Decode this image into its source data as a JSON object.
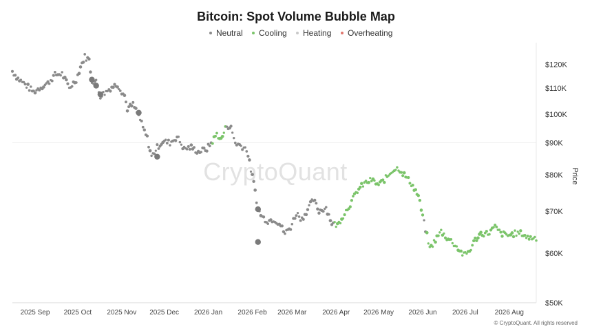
{
  "chart_data": {
    "type": "scatter",
    "title": "Bitcoin: Spot Volume Bubble Map",
    "ylabel": "Price",
    "y_scale": "log",
    "ylim": [
      50000,
      130000
    ],
    "y_ticks": [
      {
        "value": 120000,
        "label": "$120K"
      },
      {
        "value": 110000,
        "label": "$110K"
      },
      {
        "value": 100000,
        "label": "$100K"
      },
      {
        "value": 90000,
        "label": "$90K"
      },
      {
        "value": 80000,
        "label": "$80K"
      },
      {
        "value": 70000,
        "label": "$70K"
      },
      {
        "value": 60000,
        "label": "$60K"
      },
      {
        "value": 50000,
        "label": "$50K"
      }
    ],
    "x_range": [
      "2025-08-16",
      "2026-08-20"
    ],
    "x_ticks": [
      {
        "date": "2025-09-01",
        "label": "2025 Sep"
      },
      {
        "date": "2025-10-01",
        "label": "2025 Oct"
      },
      {
        "date": "2025-11-01",
        "label": "2025 Nov"
      },
      {
        "date": "2025-12-01",
        "label": "2025 Dec"
      },
      {
        "date": "2026-01-01",
        "label": "2026 Jan"
      },
      {
        "date": "2026-02-01",
        "label": "2026 Feb"
      },
      {
        "date": "2026-03-01",
        "label": "2026 Mar"
      },
      {
        "date": "2026-04-01",
        "label": "2026 Apr"
      },
      {
        "date": "2026-05-01",
        "label": "2026 May"
      },
      {
        "date": "2026-06-01",
        "label": "2026 Jun"
      },
      {
        "date": "2026-07-01",
        "label": "2026 Jul"
      },
      {
        "date": "2026-08-01",
        "label": "2026 Aug"
      }
    ],
    "grid": true,
    "legend_position": "top",
    "legend": [
      {
        "name": "Neutral",
        "color": "#8a8a8a"
      },
      {
        "name": "Cooling",
        "color": "#7bc46a"
      },
      {
        "name": "Heating",
        "color": "#c8c8c8"
      },
      {
        "name": "Overheating",
        "color": "#e0766e"
      }
    ],
    "watermark": "CryptoQuant",
    "copyright": "© CryptoQuant. All rights reserved",
    "anchors": [
      [
        "2025-08-16",
        117000
      ],
      [
        "2025-08-20",
        114000
      ],
      [
        "2025-08-25",
        111500
      ],
      [
        "2025-08-31",
        108500
      ],
      [
        "2025-09-05",
        110500
      ],
      [
        "2025-09-10",
        112000
      ],
      [
        "2025-09-15",
        115500
      ],
      [
        "2025-09-20",
        116000
      ],
      [
        "2025-09-25",
        110000
      ],
      [
        "2025-09-30",
        113500
      ],
      [
        "2025-10-03",
        119000
      ],
      [
        "2025-10-06",
        123500
      ],
      [
        "2025-10-09",
        122000
      ],
      [
        "2025-10-11",
        113000
      ],
      [
        "2025-10-14",
        112500
      ],
      [
        "2025-10-17",
        107000
      ],
      [
        "2025-10-21",
        108500
      ],
      [
        "2025-10-25",
        110500
      ],
      [
        "2025-10-29",
        111500
      ],
      [
        "2025-11-03",
        107000
      ],
      [
        "2025-11-05",
        102000
      ],
      [
        "2025-11-09",
        103500
      ],
      [
        "2025-11-13",
        99500
      ],
      [
        "2025-11-16",
        95000
      ],
      [
        "2025-11-19",
        91500
      ],
      [
        "2025-11-22",
        85500
      ],
      [
        "2025-11-26",
        88500
      ],
      [
        "2025-11-30",
        90500
      ],
      [
        "2025-12-05",
        90000
      ],
      [
        "2025-12-10",
        92000
      ],
      [
        "2025-12-15",
        88000
      ],
      [
        "2025-12-20",
        88500
      ],
      [
        "2025-12-25",
        87000
      ],
      [
        "2025-12-31",
        88000
      ],
      [
        "2026-01-04",
        90500
      ],
      [
        "2026-01-07",
        93000
      ],
      [
        "2026-01-10",
        91000
      ],
      [
        "2026-01-14",
        96000
      ],
      [
        "2026-01-17",
        95000
      ],
      [
        "2026-01-20",
        90000
      ],
      [
        "2026-01-24",
        89000
      ],
      [
        "2026-01-28",
        88000
      ],
      [
        "2026-02-01",
        79500
      ],
      [
        "2026-02-03",
        75500
      ],
      [
        "2026-02-05",
        70500
      ],
      [
        "2026-02-08",
        68500
      ],
      [
        "2026-02-12",
        67500
      ],
      [
        "2026-02-16",
        68000
      ],
      [
        "2026-02-20",
        67000
      ],
      [
        "2026-02-24",
        64500
      ],
      [
        "2026-02-28",
        66000
      ],
      [
        "2026-03-04",
        69500
      ],
      [
        "2026-03-08",
        68000
      ],
      [
        "2026-03-12",
        70500
      ],
      [
        "2026-03-16",
        73000
      ],
      [
        "2026-03-20",
        70000
      ],
      [
        "2026-03-25",
        71000
      ],
      [
        "2026-03-29",
        67000
      ],
      [
        "2026-04-02",
        66500
      ],
      [
        "2026-04-07",
        69500
      ],
      [
        "2026-04-12",
        72500
      ],
      [
        "2026-04-16",
        75500
      ],
      [
        "2026-04-21",
        77500
      ],
      [
        "2026-04-26",
        78500
      ],
      [
        "2026-05-01",
        77000
      ],
      [
        "2026-05-06",
        79000
      ],
      [
        "2026-05-11",
        81500
      ],
      [
        "2026-05-15",
        82000
      ],
      [
        "2026-05-19",
        80000
      ],
      [
        "2026-05-24",
        77500
      ],
      [
        "2026-05-29",
        74000
      ],
      [
        "2026-06-02",
        67000
      ],
      [
        "2026-06-04",
        64000
      ],
      [
        "2026-06-06",
        61000
      ],
      [
        "2026-06-10",
        63000
      ],
      [
        "2026-06-14",
        65000
      ],
      [
        "2026-06-18",
        63500
      ],
      [
        "2026-06-22",
        62500
      ],
      [
        "2026-06-26",
        61000
      ],
      [
        "2026-06-30",
        59500
      ],
      [
        "2026-07-04",
        60500
      ],
      [
        "2026-07-08",
        63000
      ],
      [
        "2026-07-12",
        64500
      ],
      [
        "2026-07-17",
        64500
      ],
      [
        "2026-07-22",
        66000
      ],
      [
        "2026-07-26",
        64500
      ],
      [
        "2026-07-31",
        64000
      ],
      [
        "2026-08-05",
        64500
      ],
      [
        "2026-08-10",
        64500
      ],
      [
        "2026-08-14",
        63500
      ],
      [
        "2026-08-20",
        63500
      ]
    ],
    "cooling_periods": [
      [
        "2026-01-04",
        "2026-01-13"
      ],
      [
        "2026-03-31",
        "2026-06-01"
      ],
      [
        "2026-06-04",
        "2026-08-20"
      ]
    ],
    "large_points": [
      [
        "2025-10-11",
        113500
      ],
      [
        "2025-10-14",
        111000
      ],
      [
        "2025-10-17",
        107500
      ],
      [
        "2025-11-13",
        100500
      ],
      [
        "2025-11-26",
        85500
      ],
      [
        "2026-02-05",
        70500
      ],
      [
        "2026-02-05",
        62500
      ]
    ]
  }
}
